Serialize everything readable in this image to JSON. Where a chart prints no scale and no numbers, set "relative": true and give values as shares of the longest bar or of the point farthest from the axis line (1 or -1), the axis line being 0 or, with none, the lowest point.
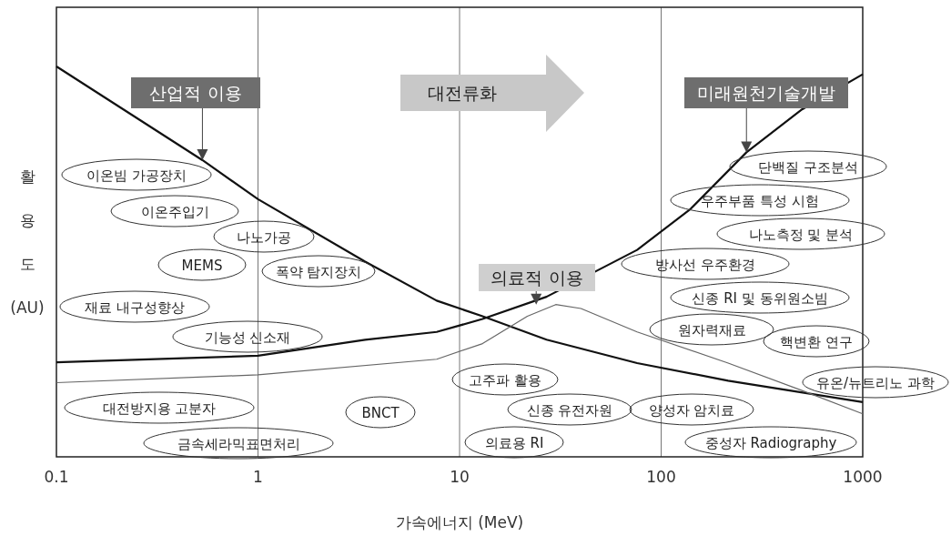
{
  "chart_data": {
    "type": "line",
    "relative": true,
    "log": "x",
    "xlabel": "가속에너지 (MeV)",
    "ylabel": "활용도 (AU)",
    "xlim": [
      0.1,
      1000
    ],
    "xticks": [
      0.1,
      1,
      10,
      100,
      1000
    ],
    "grid": "x",
    "marker": "none",
    "line_style": "solid",
    "series": [
      {
        "color": "#111111",
        "x": [
          0.1,
          0.53,
          1,
          3.4,
          7.7,
          13,
          27,
          76,
          215,
          1000
        ],
        "values": [
          1.0,
          0.76,
          0.66,
          0.5,
          0.4,
          0.36,
          0.3,
          0.24,
          0.195,
          0.14
        ]
      },
      {
        "color": "#111111",
        "x": [
          0.1,
          1,
          3.4,
          7.7,
          13,
          27,
          76,
          140,
          265,
          500,
          1000
        ],
        "values": [
          0.242,
          0.259,
          0.3,
          0.32,
          0.353,
          0.41,
          0.53,
          0.635,
          0.78,
          0.89,
          0.98
        ]
      },
      {
        "color": "#666666",
        "x": [
          0.1,
          1,
          7.7,
          13,
          21.7,
          30,
          40,
          76,
          215,
          500,
          1000
        ],
        "values": [
          0.19,
          0.21,
          0.25,
          0.29,
          0.36,
          0.39,
          0.38,
          0.32,
          0.24,
          0.17,
          0.11
        ]
      }
    ],
    "annotations": [
      {
        "text": "산업적 이용",
        "x": 0.53,
        "y": 0.76
      },
      {
        "text": "미래원천기술개발",
        "x": 265,
        "y": 0.78
      },
      {
        "text": "의료적 이용",
        "x": 24,
        "y": 0.39
      },
      "대전류화",
      "이온빔 가공장치",
      "이온주입기",
      "나노가공",
      "MEMS",
      "폭약 탐지장치",
      "재료 내구성향상",
      "기능성 신소재",
      "대전방지용 고분자",
      "금속세라믹표면처리",
      "BNCT",
      "고주파 활용",
      "신종 유전자원",
      "의료용 RI",
      "양성자 암치료",
      "단백질 구조분석",
      "우주부품 특성 시험",
      "나노측정 및 분석",
      "방사선 우주환경",
      "신종 RI 및 동위원소빔",
      "원자력재료",
      "핵변환 연구",
      "유온/뉴트리노 과학",
      "중성자 Radiography"
    ]
  }
}
